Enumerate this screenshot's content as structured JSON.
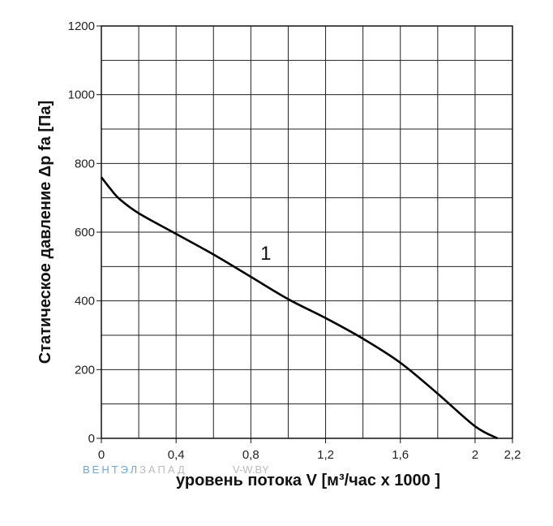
{
  "chart_data": {
    "type": "line",
    "xlabel": "уровень потока  V [м³/час x 1000 ]",
    "ylabel": "Статическое давление  Δp fa [Па]",
    "xlim": [
      0,
      2.2
    ],
    "ylim": [
      0,
      1200
    ],
    "x_ticks": [
      "0",
      "0,4",
      "0,8",
      "1,2",
      "1,6",
      "2",
      "2,2"
    ],
    "x_tick_values": [
      0,
      0.4,
      0.8,
      1.2,
      1.6,
      2.0,
      2.2
    ],
    "y_ticks": [
      "0",
      "200",
      "400",
      "600",
      "800",
      "1000",
      "1200"
    ],
    "y_tick_values": [
      0,
      200,
      400,
      600,
      800,
      1000,
      1200
    ],
    "grid": true,
    "x_grid_step": 0.2,
    "y_grid_step": 100,
    "series": [
      {
        "name": "1",
        "x": [
          0,
          0.05,
          0.1,
          0.2,
          0.4,
          0.6,
          0.8,
          1.0,
          1.2,
          1.4,
          1.6,
          1.8,
          2.0,
          2.12
        ],
        "y": [
          760,
          725,
          695,
          655,
          595,
          535,
          470,
          405,
          350,
          290,
          220,
          130,
          35,
          0
        ]
      }
    ],
    "curve_label": {
      "text": "1",
      "x": 0.88,
      "y": 520
    }
  },
  "watermark": {
    "part1": "ВЕНТЭЛ",
    "part2": "ЗАПАД",
    "part3": "V-W.BY",
    "color1": "#6aa8d8",
    "color2": "#bbbbbb"
  }
}
